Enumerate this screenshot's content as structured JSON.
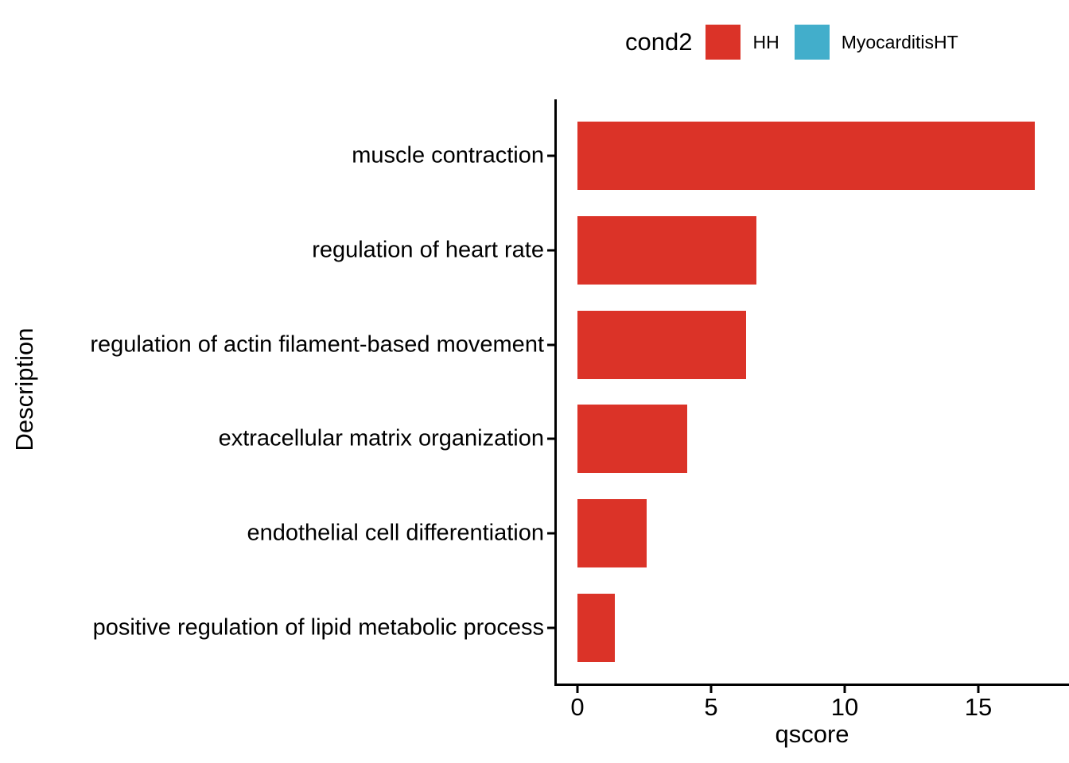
{
  "chart_data": {
    "type": "bar",
    "orientation": "horizontal",
    "title": "",
    "xlabel": "qscore",
    "ylabel": "Description",
    "xlim": [
      0,
      18.4
    ],
    "x_ticks": [
      0,
      5,
      10,
      15
    ],
    "grid": false,
    "categories": [
      "muscle contraction",
      "regulation of heart rate",
      "regulation of actin filament-based movement",
      "extracellular matrix organization",
      "endothelial cell differentiation",
      "positive regulation of lipid metabolic process"
    ],
    "series": [
      {
        "name": "HH",
        "color": "#DB3328",
        "values": [
          17.1,
          6.7,
          6.3,
          4.1,
          2.6,
          1.4
        ]
      }
    ],
    "legend": {
      "title": "cond2",
      "position": "top",
      "entries": [
        {
          "label": "HH",
          "color": "#DB3328"
        },
        {
          "label": "MyocarditisHT",
          "color": "#42AECB"
        }
      ]
    }
  }
}
